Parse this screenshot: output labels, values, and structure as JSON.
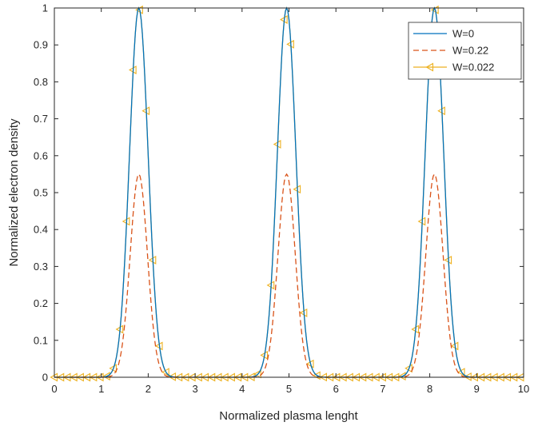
{
  "chart_data": {
    "type": "line",
    "title": "",
    "xlabel": "Normalized plasma lenght",
    "ylabel": "Normalized electron density",
    "xlim": [
      0,
      10
    ],
    "ylim": [
      0,
      1
    ],
    "xticks": [
      0,
      1,
      2,
      3,
      4,
      5,
      6,
      7,
      8,
      9,
      10
    ],
    "xtick_labels": [
      "0",
      "1",
      "2",
      "3",
      "4",
      "5",
      "6",
      "7",
      "8",
      "9",
      "10"
    ],
    "yticks": [
      0,
      0.1,
      0.2,
      0.3,
      0.4,
      0.5,
      0.6,
      0.7,
      0.8,
      0.9,
      1
    ],
    "ytick_labels": [
      "0",
      "0.1",
      "0.2",
      "0.3",
      "0.4",
      "0.5",
      "0.6",
      "0.7",
      "0.8",
      "0.9",
      "1"
    ],
    "grid": false,
    "legend_position": "top-right",
    "peaks": [
      1.8,
      4.95,
      8.1
    ],
    "series": [
      {
        "name": "W=0",
        "color": "#0072BD",
        "style": "solid",
        "marker": "none",
        "peak": 1.0,
        "width": 0.28
      },
      {
        "name": "W=0.22",
        "color": "#D95319",
        "style": "dashed",
        "marker": "none",
        "peak": 0.55,
        "width": 0.26
      },
      {
        "name": "W=0.022",
        "color": "#EDB120",
        "style": "solid",
        "marker": "left-triangle",
        "peak": 1.0,
        "width": 0.28
      }
    ]
  }
}
